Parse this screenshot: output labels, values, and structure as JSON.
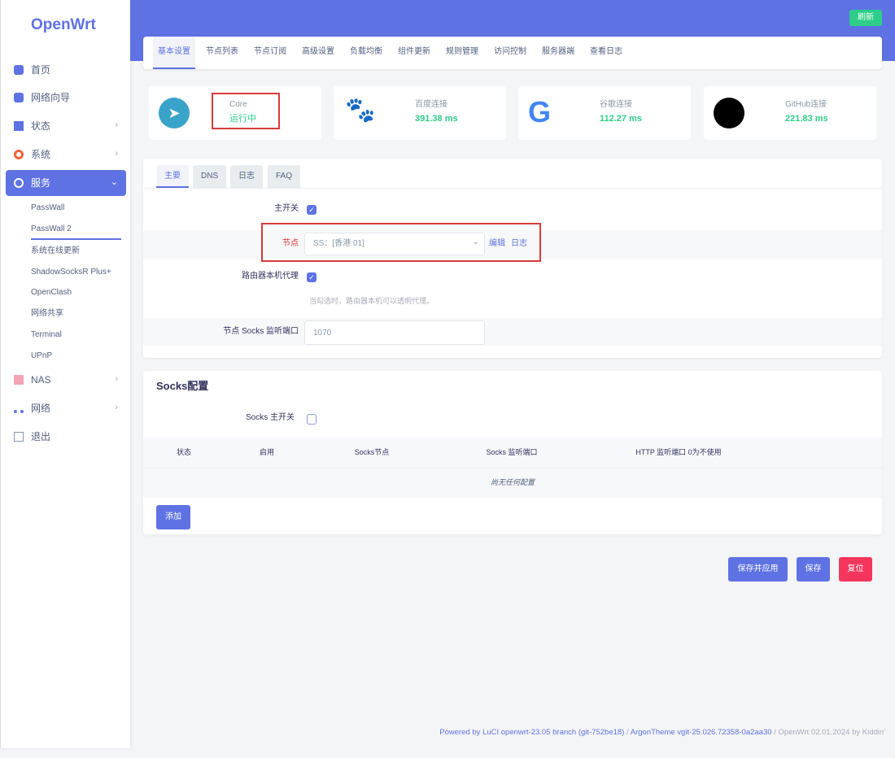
{
  "sidebar": {
    "logo": "OpenWrt",
    "items": [
      {
        "label": "首页",
        "icon": "cube-icon"
      },
      {
        "label": "网络向导",
        "icon": "cube-icon"
      },
      {
        "label": "状态",
        "icon": "dashboard-icon"
      },
      {
        "label": "系统",
        "icon": "gear-icon"
      },
      {
        "label": "服务",
        "icon": "link-icon"
      },
      {
        "label": "NAS",
        "icon": "database-icon"
      },
      {
        "label": "网络",
        "icon": "sitemap-icon"
      },
      {
        "label": "退出",
        "icon": "logout-icon"
      }
    ],
    "sub_items": [
      "PassWall",
      "PassWall 2",
      "系统在线更新",
      "ShadowSocksR Plus+",
      "OpenClash",
      "网络共享",
      "Terminal",
      "UPnP"
    ]
  },
  "header": {
    "refresh": "刷新"
  },
  "tabs": [
    "基本设置",
    "节点列表",
    "节点订阅",
    "高级设置",
    "负载均衡",
    "组件更新",
    "规则管理",
    "访问控制",
    "服务器端",
    "查看日志"
  ],
  "status": [
    {
      "label": "Core",
      "value": "运行中",
      "icon": "telegram-icon"
    },
    {
      "label": "百度连接",
      "value": "391.38 ms",
      "icon": "baidu-icon"
    },
    {
      "label": "谷歌连接",
      "value": "112.27 ms",
      "icon": "google-icon"
    },
    {
      "label": "GitHub连接",
      "value": "221.83 ms",
      "icon": "github-icon"
    }
  ],
  "main": {
    "subtabs": [
      "主要",
      "DNS",
      "日志",
      "FAQ"
    ],
    "master_switch": "主开关",
    "node_label": "节点",
    "node_value": "SS：[香港 01]",
    "edit": "编辑",
    "log": "日志",
    "router_proxy": "路由器本机代理",
    "router_hint": "当勾选时，路由器本机可以透明代理。",
    "socks_port_label": "节点 Socks 监听端口",
    "socks_port_value": "1070"
  },
  "socks": {
    "title": "Socks配置",
    "switch": "Socks 主开关",
    "columns": [
      "状态",
      "启用",
      "Socks节点",
      "Socks 监听端口",
      "HTTP 监听端口 0为不使用"
    ],
    "empty": "尚无任何配置",
    "add": "添加"
  },
  "actions": {
    "save_apply": "保存并应用",
    "save": "保存",
    "reset": "复位"
  },
  "footer": {
    "luci": "Powered by LuCI openwrt-23.05 branch (git-752be18)",
    "theme": "ArgonTheme vgit-25.026.72358-0a2aa30",
    "build": "/ OpenWrt 02.01.2024 by Kiddin'"
  },
  "colors": {
    "primary": "#5e72e4",
    "success": "#2dce89",
    "danger": "#f5365c"
  }
}
